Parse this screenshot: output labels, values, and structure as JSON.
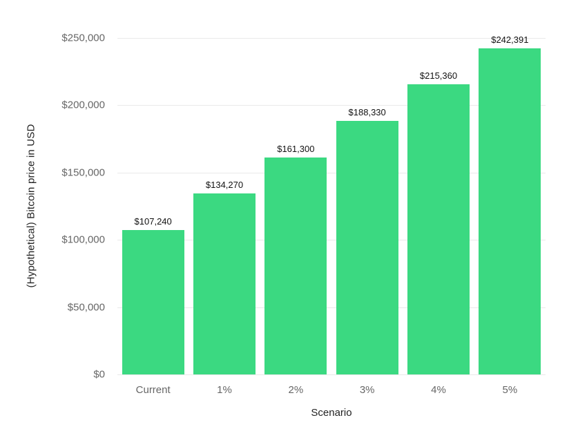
{
  "chart_data": {
    "type": "bar",
    "title": "",
    "categories": [
      "Current",
      "1%",
      "2%",
      "3%",
      "4%",
      "5%"
    ],
    "values": [
      107240,
      134270,
      161300,
      188330,
      215360,
      242391
    ],
    "data_labels": [
      "$107,240",
      "$134,270",
      "$161,300",
      "$188,330",
      "$215,360",
      "$242,391"
    ],
    "xlabel": "Scenario",
    "ylabel": "(Hypothetical) Bitcoin price in USD",
    "ylim": [
      0,
      250000
    ],
    "ytick_interval": 50000,
    "ytick_labels": [
      "$0",
      "$50,000",
      "$100,000",
      "$150,000",
      "$200,000",
      "$250,000"
    ],
    "grid": true,
    "legend": false,
    "colors": {
      "bar": "#3bd981",
      "gridline": "#e9e9e9",
      "tick_label": "#666666",
      "axis_title": "#222222",
      "data_label": "#111111",
      "background": "#ffffff"
    }
  }
}
